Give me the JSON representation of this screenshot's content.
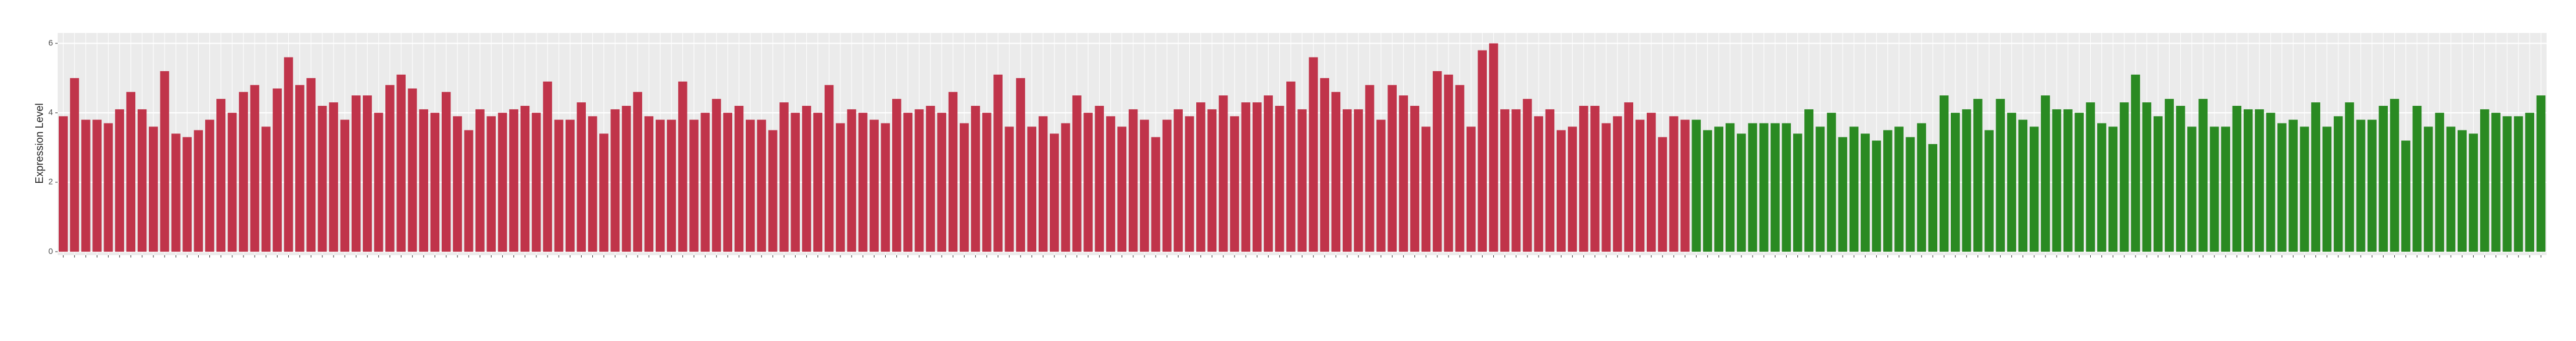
{
  "chart_data": {
    "type": "bar",
    "y_label": "Expression Level",
    "ylim": [
      -0.1,
      6.3
    ],
    "yticks": [
      0,
      2,
      4,
      6
    ],
    "grid": true,
    "categories": [
      null,
      null,
      null,
      null,
      null,
      null,
      null,
      null,
      null,
      null,
      null,
      null,
      null,
      null,
      null,
      null,
      null,
      null,
      null,
      null,
      null,
      null,
      null,
      null,
      null,
      null,
      null,
      null,
      null,
      null,
      null,
      null,
      null,
      null,
      null,
      null,
      null,
      null,
      null,
      null,
      null,
      null,
      null,
      null,
      null,
      null,
      null,
      null,
      null,
      null,
      null,
      null,
      null,
      null,
      null,
      null,
      null,
      null,
      null,
      null,
      null,
      null,
      null,
      null,
      null,
      null,
      null,
      null,
      null,
      null,
      null,
      null,
      null,
      null,
      null,
      null,
      null,
      null,
      null,
      null,
      null,
      null,
      null,
      null,
      null,
      null,
      null,
      null,
      null,
      null,
      null,
      null,
      null,
      null,
      null,
      null,
      null,
      null,
      null,
      null,
      null,
      null,
      null,
      null,
      null,
      null,
      null,
      null,
      null,
      null,
      null,
      null,
      null,
      null,
      null,
      null,
      null,
      null,
      null,
      null,
      null,
      null,
      null,
      null,
      null,
      null,
      null,
      null,
      null,
      null,
      null,
      null,
      null,
      null,
      null,
      null,
      null,
      null,
      null,
      null,
      null,
      null,
      null,
      null,
      null,
      null,
      null,
      null,
      null,
      null,
      null,
      null,
      null,
      null,
      null,
      null,
      null,
      null,
      null,
      null,
      null,
      null,
      null,
      null,
      null,
      null,
      null,
      null,
      null,
      null,
      null,
      null,
      null,
      null,
      null,
      null,
      null,
      null,
      null,
      null,
      null,
      null,
      null,
      null,
      null,
      null,
      null,
      null,
      null,
      null,
      null,
      null,
      null,
      null,
      null,
      null,
      null,
      null,
      null,
      null,
      null,
      null,
      null,
      null,
      null,
      null,
      null,
      null,
      null,
      null,
      null,
      null,
      null,
      null,
      null,
      null,
      null,
      null,
      null,
      null,
      null
    ],
    "series": [
      {
        "color": "#c0344a",
        "values": [
          3.9,
          5.0,
          3.8,
          3.8,
          3.7,
          4.1,
          4.6,
          4.1,
          3.6,
          5.2,
          3.4,
          3.3,
          3.5,
          3.8,
          4.4,
          4.0,
          4.6,
          4.8,
          3.6,
          4.7,
          5.6,
          4.8,
          5.0,
          4.2,
          4.3,
          3.8,
          4.5,
          4.5,
          4.0,
          4.8,
          5.1,
          4.7,
          4.1,
          4.0,
          4.6,
          3.9,
          3.5,
          4.1,
          3.9,
          4.0,
          4.1,
          4.2,
          4.0,
          4.9,
          3.8,
          3.8,
          4.3,
          3.9,
          3.4,
          4.1,
          4.2,
          4.6,
          3.9,
          3.8,
          3.8,
          4.9,
          3.8,
          4.0,
          4.4,
          4.0,
          4.2,
          3.8,
          3.8,
          3.5,
          4.3,
          4.0,
          4.2,
          4.0,
          4.8,
          3.7,
          4.1,
          4.0,
          3.8,
          3.7,
          4.4,
          4.0,
          4.1,
          4.2,
          4.0,
          4.6,
          3.7,
          4.2,
          4.0,
          5.1,
          3.6,
          5.0,
          3.6,
          3.9,
          3.4,
          3.7,
          4.5,
          4.0,
          4.2,
          3.9,
          3.6,
          4.1,
          3.8,
          3.3,
          3.8,
          4.1,
          3.9,
          4.3,
          4.1,
          4.5,
          3.9,
          4.3,
          4.3,
          4.5,
          4.2,
          4.9,
          4.1,
          5.6,
          5.0,
          4.6,
          4.1,
          4.1,
          4.8,
          3.8,
          4.8,
          4.5,
          4.2,
          3.6,
          5.2,
          5.1,
          4.8,
          3.6,
          5.8,
          6.0,
          4.1,
          4.1,
          4.4,
          3.9,
          4.1,
          3.5,
          3.6,
          4.2,
          4.2,
          3.7,
          3.9,
          4.3,
          3.8,
          4.0,
          3.3,
          3.9,
          3.8,
          null,
          null,
          null,
          null,
          null,
          null,
          null,
          null,
          null,
          null,
          null,
          null,
          null,
          null,
          null,
          null,
          null,
          null,
          null,
          null,
          null,
          null,
          null,
          null,
          null,
          null,
          null,
          null,
          null,
          null,
          null,
          null,
          null,
          null,
          null,
          null,
          null,
          null,
          null,
          null,
          null,
          null,
          null,
          null,
          null,
          null,
          null,
          null,
          null,
          null,
          null,
          null,
          null,
          null,
          null,
          null,
          null,
          null,
          null,
          null,
          null,
          null,
          null,
          null,
          null,
          null,
          null,
          null,
          null,
          null,
          null,
          null,
          null,
          null,
          null,
          null
        ]
      },
      {
        "color": "#2a8a22",
        "values": [
          null,
          null,
          null,
          null,
          null,
          null,
          null,
          null,
          null,
          null,
          null,
          null,
          null,
          null,
          null,
          null,
          null,
          null,
          null,
          null,
          null,
          null,
          null,
          null,
          null,
          null,
          null,
          null,
          null,
          null,
          null,
          null,
          null,
          null,
          null,
          null,
          null,
          null,
          null,
          null,
          null,
          null,
          null,
          null,
          null,
          null,
          null,
          null,
          null,
          null,
          null,
          null,
          null,
          null,
          null,
          null,
          null,
          null,
          null,
          null,
          null,
          null,
          null,
          null,
          null,
          null,
          null,
          null,
          null,
          null,
          null,
          null,
          null,
          null,
          null,
          null,
          null,
          null,
          null,
          null,
          null,
          null,
          null,
          null,
          null,
          null,
          null,
          null,
          null,
          null,
          null,
          null,
          null,
          null,
          null,
          null,
          null,
          null,
          null,
          null,
          null,
          null,
          null,
          null,
          null,
          null,
          null,
          null,
          null,
          null,
          null,
          null,
          null,
          null,
          null,
          null,
          null,
          null,
          null,
          null,
          null,
          null,
          null,
          null,
          null,
          null,
          null,
          null,
          null,
          null,
          null,
          null,
          null,
          null,
          null,
          null,
          null,
          null,
          null,
          null,
          null,
          null,
          null,
          null,
          null,
          3.8,
          3.5,
          3.6,
          3.7,
          3.4,
          3.7,
          3.7,
          3.7,
          3.7,
          3.4,
          4.1,
          3.6,
          4.0,
          3.3,
          3.6,
          3.4,
          3.2,
          3.5,
          3.6,
          3.3,
          3.7,
          3.1,
          4.5,
          4.0,
          4.1,
          4.4,
          3.5,
          4.4,
          4.0,
          3.8,
          3.6,
          4.5,
          4.1,
          4.1,
          4.0,
          4.3,
          3.7,
          3.6,
          4.3,
          5.1,
          4.3,
          3.9,
          4.4,
          4.2,
          3.6,
          4.4,
          3.6,
          3.6,
          4.2,
          4.1,
          4.1,
          4.0,
          3.7,
          3.8,
          3.6,
          4.3,
          3.6,
          3.9,
          4.3,
          3.8,
          3.8,
          4.2,
          4.4,
          3.2,
          4.2,
          3.6,
          4.0,
          3.6,
          3.5,
          3.4,
          4.1,
          4.0,
          3.9,
          3.9,
          4.0,
          4.5
        ]
      }
    ]
  }
}
